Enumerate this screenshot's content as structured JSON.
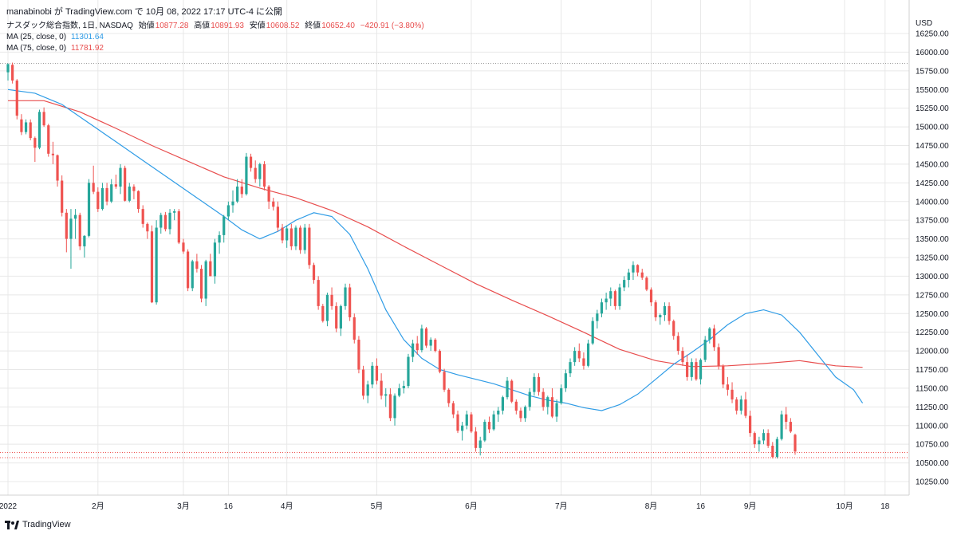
{
  "header": {
    "author_line": "manabinobi が TradingView.com で 10月 08, 2022 17:17 UTC-4 に公開"
  },
  "legend": {
    "symbol": "ナスダック総合指数, 1日, NASDAQ",
    "open_label": "始値",
    "open": "10877.28",
    "high_label": "高値",
    "high": "10891.93",
    "low_label": "安値",
    "low": "10608.52",
    "close_label": "終値",
    "close": "10652.40",
    "change": "−420.91 (−3.80%)",
    "ma25_label": "MA (25, close, 0)",
    "ma25_value": "11301.64",
    "ma75_label": "MA (75, close, 0)",
    "ma75_value": "11781.92"
  },
  "footer": {
    "brand": "TradingView"
  },
  "colors": {
    "up": "#26a69a",
    "down": "#ef5350",
    "ma25": "#2f9ce6",
    "ma75": "#e84d4d",
    "grid": "#e8e8e8"
  },
  "chart_data": {
    "type": "candlestick",
    "currency_label": "USD",
    "ylim": [
      10050,
      16400
    ],
    "y_ticks": [
      10250,
      10500,
      10750,
      11000,
      11250,
      11500,
      11750,
      12000,
      12250,
      12500,
      12750,
      13000,
      13250,
      13500,
      13750,
      14000,
      14250,
      14500,
      14750,
      15000,
      15250,
      15500,
      15750,
      16000,
      16250
    ],
    "x_ticks": [
      {
        "index": 0,
        "label": "2022"
      },
      {
        "index": 20,
        "label": "2月"
      },
      {
        "index": 39,
        "label": "3月"
      },
      {
        "index": 49,
        "label": "16"
      },
      {
        "index": 62,
        "label": "4月"
      },
      {
        "index": 82,
        "label": "5月"
      },
      {
        "index": 103,
        "label": "6月"
      },
      {
        "index": 123,
        "label": "7月"
      },
      {
        "index": 143,
        "label": "8月"
      },
      {
        "index": 154,
        "label": "16"
      },
      {
        "index": 165,
        "label": "9月"
      },
      {
        "index": 186,
        "label": "10月"
      },
      {
        "index": 195,
        "label": "18"
      }
    ],
    "hlines": [
      15850,
      10640,
      10570
    ],
    "candles": [
      [
        15730,
        15850,
        15620,
        15840
      ],
      [
        15830,
        15860,
        15580,
        15620
      ],
      [
        15620,
        15640,
        15100,
        15150
      ],
      [
        15100,
        15170,
        14890,
        14930
      ],
      [
        14930,
        15100,
        14900,
        15060
      ],
      [
        15060,
        15100,
        14820,
        14850
      ],
      [
        14850,
        14870,
        14530,
        14720
      ],
      [
        14720,
        15230,
        14700,
        15200
      ],
      [
        15200,
        15260,
        15000,
        15020
      ],
      [
        15020,
        15040,
        14600,
        14640
      ],
      [
        14640,
        14800,
        14500,
        14620
      ],
      [
        14620,
        14630,
        14200,
        14280
      ],
      [
        14280,
        14350,
        13800,
        13850
      ],
      [
        13850,
        13900,
        13320,
        13500
      ],
      [
        13500,
        13900,
        13100,
        13770
      ],
      [
        13770,
        13900,
        13500,
        13820
      ],
      [
        13820,
        13850,
        13350,
        13400
      ],
      [
        13400,
        13550,
        13250,
        13540
      ],
      [
        13540,
        14300,
        13520,
        14250
      ],
      [
        14250,
        14480,
        14100,
        14130
      ],
      [
        14130,
        14190,
        13860,
        13900
      ],
      [
        13900,
        14250,
        13880,
        14180
      ],
      [
        14180,
        14250,
        13950,
        14000
      ],
      [
        14000,
        14300,
        13980,
        14230
      ],
      [
        14230,
        14360,
        14170,
        14200
      ],
      [
        14200,
        14500,
        14100,
        14450
      ],
      [
        14450,
        14480,
        14000,
        14010
      ],
      [
        14010,
        14250,
        13990,
        14200
      ],
      [
        14200,
        14230,
        14030,
        14140
      ],
      [
        14140,
        14150,
        13850,
        13900
      ],
      [
        13900,
        13950,
        13650,
        13700
      ],
      [
        13700,
        13720,
        13500,
        13600
      ],
      [
        13600,
        13680,
        12640,
        12650
      ],
      [
        12650,
        13750,
        12620,
        13650
      ],
      [
        13650,
        13850,
        13570,
        13820
      ],
      [
        13820,
        13860,
        13600,
        13630
      ],
      [
        13630,
        13900,
        13560,
        13850
      ],
      [
        13850,
        13900,
        13750,
        13870
      ],
      [
        13870,
        13900,
        13430,
        13450
      ],
      [
        13450,
        13500,
        13300,
        13330
      ],
      [
        13330,
        13360,
        12800,
        12840
      ],
      [
        12840,
        13220,
        12800,
        13200
      ],
      [
        13200,
        13300,
        13050,
        13100
      ],
      [
        13100,
        13150,
        12650,
        12700
      ],
      [
        12700,
        13220,
        12600,
        13200
      ],
      [
        13200,
        13300,
        13000,
        13000
      ],
      [
        13000,
        13500,
        12900,
        13450
      ],
      [
        13450,
        13600,
        13300,
        13550
      ],
      [
        13550,
        13820,
        13450,
        13800
      ],
      [
        13800,
        14000,
        13750,
        13950
      ],
      [
        13950,
        14150,
        13850,
        14000
      ],
      [
        14000,
        14300,
        13980,
        14200
      ],
      [
        14200,
        14300,
        14050,
        14100
      ],
      [
        14100,
        14650,
        14080,
        14600
      ],
      [
        14600,
        14640,
        14400,
        14450
      ],
      [
        14450,
        14550,
        14250,
        14300
      ],
      [
        14300,
        14520,
        14200,
        14500
      ],
      [
        14500,
        14540,
        14150,
        14200
      ],
      [
        14200,
        14220,
        13900,
        14000
      ],
      [
        14000,
        14050,
        13880,
        13930
      ],
      [
        13930,
        14000,
        13600,
        13650
      ],
      [
        13650,
        13700,
        13440,
        13480
      ],
      [
        13480,
        13680,
        13380,
        13640
      ],
      [
        13640,
        13700,
        13350,
        13400
      ],
      [
        13400,
        13680,
        13350,
        13650
      ],
      [
        13650,
        13680,
        13300,
        13350
      ],
      [
        13350,
        13700,
        13300,
        13650
      ],
      [
        13650,
        13700,
        13100,
        13150
      ],
      [
        13150,
        13180,
        12900,
        12950
      ],
      [
        12950,
        13000,
        12550,
        12600
      ],
      [
        12600,
        12630,
        12380,
        12400
      ],
      [
        12400,
        12780,
        12330,
        12750
      ],
      [
        12750,
        12850,
        12550,
        12600
      ],
      [
        12600,
        12650,
        12250,
        12300
      ],
      [
        12300,
        12620,
        12200,
        12600
      ],
      [
        12600,
        12900,
        12550,
        12850
      ],
      [
        12850,
        12900,
        12400,
        12450
      ],
      [
        12450,
        12500,
        12100,
        12150
      ],
      [
        12150,
        12200,
        11700,
        11750
      ],
      [
        11750,
        11800,
        11350,
        11400
      ],
      [
        11400,
        11600,
        11300,
        11550
      ],
      [
        11550,
        11850,
        11500,
        11800
      ],
      [
        11800,
        11900,
        11550,
        11600
      ],
      [
        11600,
        11700,
        11350,
        11400
      ],
      [
        11400,
        11500,
        11250,
        11420
      ],
      [
        11420,
        11500,
        11060,
        11100
      ],
      [
        11100,
        11430,
        11000,
        11400
      ],
      [
        11400,
        11560,
        11380,
        11500
      ],
      [
        11500,
        11600,
        11430,
        11530
      ],
      [
        11530,
        11960,
        11500,
        11920
      ],
      [
        11920,
        12150,
        11850,
        12100
      ],
      [
        12100,
        12200,
        11950,
        12010
      ],
      [
        12010,
        12350,
        11980,
        12300
      ],
      [
        12300,
        12320,
        12040,
        12070
      ],
      [
        12070,
        12180,
        12000,
        12150
      ],
      [
        12150,
        12170,
        11980,
        12000
      ],
      [
        12000,
        12020,
        11700,
        11720
      ],
      [
        11720,
        11760,
        11450,
        11480
      ],
      [
        11480,
        11500,
        11250,
        11300
      ],
      [
        11300,
        11330,
        11100,
        11150
      ],
      [
        11150,
        11200,
        10900,
        10930
      ],
      [
        10930,
        11050,
        10800,
        11000
      ],
      [
        11000,
        11200,
        10950,
        11150
      ],
      [
        11150,
        11180,
        10900,
        10920
      ],
      [
        10920,
        10980,
        10650,
        10700
      ],
      [
        10700,
        10850,
        10600,
        10800
      ],
      [
        10800,
        11080,
        10780,
        11050
      ],
      [
        11050,
        11120,
        10900,
        10950
      ],
      [
        10950,
        11200,
        10930,
        11150
      ],
      [
        11150,
        11250,
        11050,
        11200
      ],
      [
        11200,
        11400,
        11150,
        11380
      ],
      [
        11380,
        11650,
        11350,
        11600
      ],
      [
        11600,
        11620,
        11300,
        11320
      ],
      [
        11320,
        11350,
        11150,
        11200
      ],
      [
        11200,
        11240,
        11050,
        11100
      ],
      [
        11100,
        11270,
        11050,
        11250
      ],
      [
        11250,
        11500,
        11200,
        11450
      ],
      [
        11450,
        11700,
        11400,
        11650
      ],
      [
        11650,
        11700,
        11400,
        11450
      ],
      [
        11450,
        11500,
        11200,
        11250
      ],
      [
        11250,
        11400,
        11150,
        11380
      ],
      [
        11380,
        11500,
        11100,
        11120
      ],
      [
        11120,
        11350,
        11050,
        11300
      ],
      [
        11300,
        11550,
        11280,
        11500
      ],
      [
        11500,
        11750,
        11450,
        11700
      ],
      [
        11700,
        11900,
        11650,
        11850
      ],
      [
        11850,
        12050,
        11800,
        12000
      ],
      [
        12000,
        12100,
        11850,
        11900
      ],
      [
        11900,
        11980,
        11750,
        11800
      ],
      [
        11800,
        12150,
        11780,
        12100
      ],
      [
        12100,
        12450,
        12080,
        12400
      ],
      [
        12400,
        12550,
        12300,
        12500
      ],
      [
        12500,
        12700,
        12450,
        12650
      ],
      [
        12650,
        12780,
        12550,
        12700
      ],
      [
        12700,
        12850,
        12600,
        12800
      ],
      [
        12800,
        12820,
        12550,
        12600
      ],
      [
        12600,
        12900,
        12550,
        12850
      ],
      [
        12850,
        13000,
        12800,
        12950
      ],
      [
        12950,
        13100,
        12850,
        13050
      ],
      [
        13050,
        13200,
        12950,
        13150
      ],
      [
        13150,
        13160,
        13000,
        13050
      ],
      [
        13050,
        13100,
        12950,
        12980
      ],
      [
        12980,
        13000,
        12800,
        12820
      ],
      [
        12820,
        12850,
        12600,
        12650
      ],
      [
        12650,
        12680,
        12400,
        12450
      ],
      [
        12450,
        12500,
        12350,
        12480
      ],
      [
        12480,
        12650,
        12400,
        12600
      ],
      [
        12600,
        12650,
        12350,
        12400
      ],
      [
        12400,
        12420,
        12150,
        12200
      ],
      [
        12200,
        12250,
        11950,
        12000
      ],
      [
        12000,
        12050,
        11800,
        11850
      ],
      [
        11850,
        11950,
        11600,
        11650
      ],
      [
        11650,
        11900,
        11600,
        11850
      ],
      [
        11850,
        11900,
        11600,
        11620
      ],
      [
        11620,
        11900,
        11550,
        11880
      ],
      [
        11880,
        12200,
        11850,
        12150
      ],
      [
        12150,
        12320,
        12100,
        12300
      ],
      [
        12300,
        12350,
        12000,
        12050
      ],
      [
        12050,
        12100,
        11750,
        11800
      ],
      [
        11800,
        11820,
        11500,
        11550
      ],
      [
        11550,
        11650,
        11400,
        11480
      ],
      [
        11480,
        11580,
        11300,
        11350
      ],
      [
        11350,
        11380,
        11150,
        11200
      ],
      [
        11200,
        11400,
        11150,
        11350
      ],
      [
        11350,
        11450,
        11100,
        11130
      ],
      [
        11130,
        11200,
        10850,
        10900
      ],
      [
        10900,
        10920,
        10700,
        10750
      ],
      [
        10750,
        10850,
        10650,
        10800
      ],
      [
        10800,
        10950,
        10750,
        10900
      ],
      [
        10900,
        10950,
        10700,
        10730
      ],
      [
        10730,
        10780,
        10560,
        10580
      ],
      [
        10580,
        10850,
        10560,
        10820
      ],
      [
        10820,
        11200,
        10800,
        11150
      ],
      [
        11150,
        11250,
        10950,
        11050
      ],
      [
        11050,
        11100,
        10900,
        10920
      ],
      [
        10877.28,
        10891.93,
        10608.52,
        10652.4
      ]
    ],
    "ma25": [
      [
        0,
        15500
      ],
      [
        6,
        15450
      ],
      [
        12,
        15300
      ],
      [
        18,
        15050
      ],
      [
        24,
        14800
      ],
      [
        30,
        14550
      ],
      [
        36,
        14300
      ],
      [
        42,
        14050
      ],
      [
        48,
        13800
      ],
      [
        52,
        13620
      ],
      [
        56,
        13500
      ],
      [
        60,
        13600
      ],
      [
        64,
        13750
      ],
      [
        68,
        13850
      ],
      [
        72,
        13800
      ],
      [
        76,
        13560
      ],
      [
        80,
        13100
      ],
      [
        84,
        12550
      ],
      [
        88,
        12150
      ],
      [
        92,
        11900
      ],
      [
        96,
        11750
      ],
      [
        100,
        11680
      ],
      [
        104,
        11620
      ],
      [
        108,
        11560
      ],
      [
        112,
        11480
      ],
      [
        116,
        11400
      ],
      [
        120,
        11340
      ],
      [
        124,
        11300
      ],
      [
        128,
        11240
      ],
      [
        132,
        11200
      ],
      [
        136,
        11280
      ],
      [
        140,
        11420
      ],
      [
        144,
        11620
      ],
      [
        148,
        11820
      ],
      [
        152,
        11980
      ],
      [
        156,
        12150
      ],
      [
        160,
        12350
      ],
      [
        164,
        12500
      ],
      [
        168,
        12550
      ],
      [
        172,
        12480
      ],
      [
        176,
        12250
      ],
      [
        180,
        11950
      ],
      [
        184,
        11650
      ],
      [
        188,
        11480
      ],
      [
        190,
        11300
      ]
    ],
    "ma75": [
      [
        0,
        15350
      ],
      [
        8,
        15350
      ],
      [
        16,
        15200
      ],
      [
        24,
        14980
      ],
      [
        32,
        14750
      ],
      [
        40,
        14540
      ],
      [
        48,
        14330
      ],
      [
        56,
        14180
      ],
      [
        64,
        14050
      ],
      [
        72,
        13880
      ],
      [
        80,
        13660
      ],
      [
        88,
        13400
      ],
      [
        96,
        13150
      ],
      [
        104,
        12900
      ],
      [
        112,
        12680
      ],
      [
        120,
        12470
      ],
      [
        128,
        12250
      ],
      [
        136,
        12020
      ],
      [
        144,
        11870
      ],
      [
        152,
        11790
      ],
      [
        160,
        11800
      ],
      [
        168,
        11830
      ],
      [
        176,
        11870
      ],
      [
        184,
        11800
      ],
      [
        190,
        11780
      ]
    ]
  }
}
